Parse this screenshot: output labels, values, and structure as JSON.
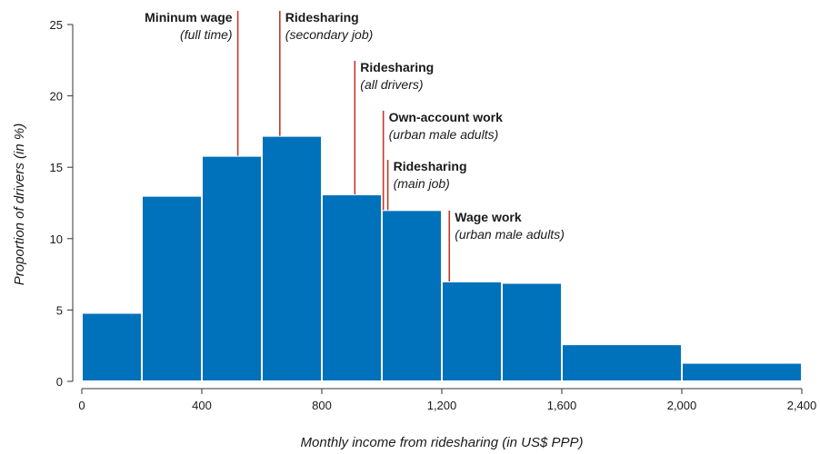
{
  "chart_data": {
    "type": "bar",
    "title": "",
    "xlabel": "Monthly income from ridesharing (in US$ PPP)",
    "ylabel": "Proportion of drivers (in %)",
    "xlim": [
      0,
      2400
    ],
    "ylim": [
      0,
      25
    ],
    "x_ticks": [
      0,
      400,
      800,
      1200,
      1600,
      2000,
      2400
    ],
    "x_tick_labels": [
      "0",
      "400",
      "800",
      "1,200",
      "1,600",
      "2,000",
      "2,400"
    ],
    "y_ticks": [
      0,
      5,
      10,
      15,
      20,
      25
    ],
    "y_tick_labels": [
      "0",
      "5",
      "10",
      "15",
      "20",
      "25"
    ],
    "bins": [
      {
        "x0": 0,
        "x1": 200,
        "value": 4.8
      },
      {
        "x0": 200,
        "x1": 400,
        "value": 13.0
      },
      {
        "x0": 400,
        "x1": 600,
        "value": 15.8
      },
      {
        "x0": 600,
        "x1": 800,
        "value": 17.2
      },
      {
        "x0": 800,
        "x1": 1000,
        "value": 13.1
      },
      {
        "x0": 1000,
        "x1": 1200,
        "value": 12.0
      },
      {
        "x0": 1200,
        "x1": 1400,
        "value": 7.0
      },
      {
        "x0": 1400,
        "x1": 1600,
        "value": 6.9
      },
      {
        "x0": 1600,
        "x1": 2000,
        "value": 2.6
      },
      {
        "x0": 2000,
        "x1": 2400,
        "value": 1.3
      }
    ],
    "annotations": [
      {
        "x": 520,
        "y": 15.8,
        "title": "Mininum wage",
        "subtitle": "(full time)",
        "align": "left"
      },
      {
        "x": 660,
        "y": 17.2,
        "title": "Ridesharing",
        "subtitle": "(secondary job)",
        "align": "right"
      },
      {
        "x": 910,
        "y": 13.1,
        "title": "Ridesharing",
        "subtitle": "(all drivers)",
        "align": "right"
      },
      {
        "x": 1005,
        "y": 12.0,
        "title": "Own-account work",
        "subtitle": "(urban male adults)",
        "align": "right"
      },
      {
        "x": 1020,
        "y": 12.0,
        "title": "Ridesharing",
        "subtitle": "(main job)",
        "align": "right"
      },
      {
        "x": 1225,
        "y": 7.0,
        "title": "Wage work",
        "subtitle": "(urban male adults)",
        "align": "right"
      }
    ],
    "grid": false,
    "legend": "none",
    "colors": {
      "bar": "#0072BB",
      "annotation_line": "#C0392B",
      "axis": "#333333"
    }
  }
}
